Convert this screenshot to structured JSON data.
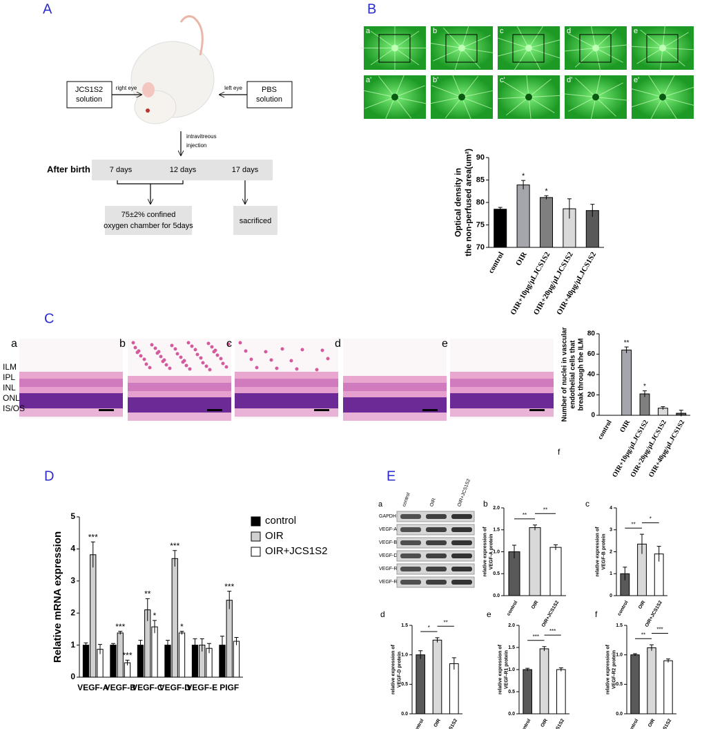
{
  "panels": [
    "A",
    "B",
    "C",
    "D",
    "E"
  ],
  "diagram": {
    "left_box": [
      "JCS1S2",
      "solution"
    ],
    "right_eye": "right eye",
    "left_eye": "left eye",
    "right_box": [
      "PBS",
      "solution"
    ],
    "injection": [
      "intravitreous",
      "injection"
    ],
    "timeline": "After birth",
    "days": [
      "7 days",
      "12 days",
      "17 days"
    ],
    "chamber": [
      "75±2% confined",
      "oxygen chamber for 5days"
    ],
    "end": "sacrificed"
  },
  "retina_images": [
    "a",
    "b",
    "c",
    "d",
    "e",
    "a'",
    "b'",
    "c'",
    "d'",
    "e'"
  ],
  "he_images": [
    "a",
    "b",
    "c",
    "d",
    "e"
  ],
  "layers": [
    "ILM",
    "IPL",
    "INL",
    "ONL",
    "IS/OS"
  ],
  "blot": {
    "label": "a",
    "columns": [
      "control",
      "OIR",
      "OIR+JCS1S2"
    ],
    "rows": [
      "GAPDH",
      "VEGF-A",
      "VEGF-B",
      "VEGF-D",
      "VEGF-R1",
      "VEGF-R2"
    ]
  },
  "chart_data": [
    {
      "type": "bar",
      "ylabel": [
        "Optical density in",
        "the non-perfused area(um²)"
      ],
      "categories": [
        "control",
        "OIR",
        "OIR+10μg/μLJCS1S2",
        "OIR+20μg/μLJCS1S2",
        "OIR+40μg/μLJCS1S2"
      ],
      "series": [
        {
          "colors": [
            "#000000",
            "#a5a5ad",
            "#7f7f7f",
            "#d9d9d9",
            "#595959"
          ],
          "values": [
            78.5,
            83.9,
            81.1,
            78.6,
            78.2
          ],
          "errors": [
            0.4,
            1.0,
            0.4,
            2.2,
            1.4
          ],
          "stars": [
            null,
            "*",
            "*",
            null,
            null
          ]
        }
      ],
      "ylim": [
        70,
        90
      ],
      "yticks": [
        70,
        75,
        80,
        85,
        90
      ]
    },
    {
      "type": "bar",
      "label": "f",
      "ylabel": [
        "Number of nuclei in vascular",
        "endothelial cells that",
        "break through the ILM"
      ],
      "categories": [
        "control",
        "OIR",
        "OIR+10μg/μLJCS1S2",
        "OIR+20μg/μLJCS1S2",
        "OIR+40μg/μLJCS1S2"
      ],
      "series": [
        {
          "colors": [
            "#000000",
            "#a5a5ad",
            "#7f7f7f",
            "#d9d9d9",
            "#595959"
          ],
          "values": [
            0,
            64,
            21,
            7,
            2
          ],
          "errors": [
            0,
            3,
            3,
            1.5,
            3
          ],
          "stars": [
            null,
            "**",
            "*",
            null,
            null
          ]
        }
      ],
      "ylim": [
        0,
        80
      ],
      "yticks": [
        0,
        20,
        40,
        60,
        80
      ]
    },
    {
      "type": "bar",
      "ylabel": [
        "Relative  mRNA expression"
      ],
      "categories": [
        "VEGF-A",
        "VEGF-B",
        "VEGF-C",
        "VEGF-D",
        "VEGF-E",
        "PIGF"
      ],
      "series": [
        {
          "name": "control",
          "color": "#000000",
          "values": [
            1,
            1,
            1,
            1,
            1,
            1
          ],
          "errors": [
            0.07,
            0.05,
            0.15,
            0.15,
            0.2,
            0.28
          ]
        },
        {
          "name": "OIR",
          "color": "#d0d0d0",
          "values": [
            3.82,
            1.38,
            2.1,
            3.7,
            1.0,
            2.4
          ],
          "errors": [
            0.4,
            0.05,
            0.35,
            0.25,
            0.2,
            0.28
          ],
          "stars": [
            "***",
            "***",
            "**",
            "***",
            null,
            "***"
          ]
        },
        {
          "name": "OIR+JCS1S2",
          "color": "#ffffff",
          "values": [
            0.87,
            0.45,
            1.57,
            1.38,
            0.9,
            1.12
          ],
          "errors": [
            0.15,
            0.08,
            0.2,
            0.05,
            0.15,
            0.12
          ],
          "stars": [
            null,
            "***",
            "*",
            "*",
            null,
            null
          ]
        }
      ],
      "ylim": [
        0,
        5
      ],
      "yticks": [
        0,
        1,
        2,
        3,
        4,
        5
      ],
      "legend": "upper right"
    },
    {
      "type": "bar",
      "label": "b",
      "ylabel": [
        "relative expression of",
        "VEGF-A protein"
      ],
      "categories": [
        "control",
        "OIR",
        "OIR+JCS1S2"
      ],
      "series": [
        {
          "colors": [
            "#595959",
            "#d9d9d9",
            "#ffffff"
          ],
          "values": [
            1.0,
            1.55,
            1.1
          ],
          "errors": [
            0.15,
            0.06,
            0.06
          ]
        }
      ],
      "ylim": [
        0,
        2
      ],
      "yticks": [
        {
          "value": 0,
          "label": "0.0"
        },
        0.5,
        {
          "value": 1,
          "label": "1.0"
        },
        1.5,
        {
          "value": 2,
          "label": "2.0"
        }
      ],
      "brackets": [
        {
          "between": [
            0,
            1
          ],
          "label": "**"
        },
        {
          "between": [
            1,
            2
          ],
          "label": "**"
        }
      ]
    },
    {
      "type": "bar",
      "label": "c",
      "ylabel": [
        "relative expression of",
        "VEGF-B protein"
      ],
      "categories": [
        "control",
        "OIR",
        "OIR+JCS1S2"
      ],
      "series": [
        {
          "colors": [
            "#595959",
            "#d9d9d9",
            "#ffffff"
          ],
          "values": [
            1.0,
            2.35,
            1.9
          ],
          "errors": [
            0.3,
            0.45,
            0.35
          ]
        }
      ],
      "ylim": [
        0,
        4
      ],
      "yticks": [
        0,
        1,
        2,
        3,
        4
      ],
      "brackets": [
        {
          "between": [
            0,
            1
          ],
          "label": "**"
        },
        {
          "between": [
            1,
            2
          ],
          "label": "*"
        }
      ]
    },
    {
      "type": "bar",
      "label": "d",
      "ylabel": [
        "relative expression of",
        "VEGF-D protein"
      ],
      "categories": [
        "control",
        "OIR",
        "OIR+JCS1S2"
      ],
      "series": [
        {
          "colors": [
            "#595959",
            "#d9d9d9",
            "#ffffff"
          ],
          "values": [
            1.0,
            1.25,
            0.85
          ],
          "errors": [
            0.07,
            0.04,
            0.1
          ]
        }
      ],
      "ylim": [
        0,
        1.5
      ],
      "yticks": [
        {
          "value": 0,
          "label": "0.0"
        },
        0.5,
        {
          "value": 1,
          "label": "1.0"
        },
        1.5
      ],
      "brackets": [
        {
          "between": [
            0,
            1
          ],
          "label": "*"
        },
        {
          "between": [
            1,
            2
          ],
          "label": "**"
        }
      ]
    },
    {
      "type": "bar",
      "label": "e",
      "ylabel": [
        "relative expression of",
        "VEGF-R1 protein"
      ],
      "categories": [
        "control",
        "OIR",
        "OIR+JCS1S2"
      ],
      "series": [
        {
          "colors": [
            "#595959",
            "#d9d9d9",
            "#ffffff"
          ],
          "values": [
            1.0,
            1.47,
            1.0
          ],
          "errors": [
            0.03,
            0.05,
            0.04
          ]
        }
      ],
      "ylim": [
        0,
        2
      ],
      "yticks": [
        {
          "value": 0,
          "label": "0.0"
        },
        0.5,
        {
          "value": 1,
          "label": "1.0"
        },
        1.5,
        {
          "value": 2,
          "label": "2.0"
        }
      ],
      "brackets": [
        {
          "between": [
            0,
            1
          ],
          "label": "***"
        },
        {
          "between": [
            1,
            2
          ],
          "label": "***"
        }
      ]
    },
    {
      "type": "bar",
      "label": "f",
      "ylabel": [
        "relative expression of",
        "VEGF-R2 protein"
      ],
      "categories": [
        "control",
        "OIR",
        "OIR+JCS1S2"
      ],
      "series": [
        {
          "colors": [
            "#595959",
            "#d9d9d9",
            "#ffffff"
          ],
          "values": [
            1.0,
            1.12,
            0.9
          ],
          "errors": [
            0.02,
            0.05,
            0.03
          ]
        }
      ],
      "ylim": [
        0,
        1.5
      ],
      "yticks": [
        {
          "value": 0,
          "label": "0.0"
        },
        0.5,
        {
          "value": 1,
          "label": "1.0"
        },
        1.5
      ],
      "brackets": [
        {
          "between": [
            0,
            1
          ],
          "label": "**"
        },
        {
          "between": [
            1,
            2
          ],
          "label": "***"
        }
      ]
    }
  ]
}
